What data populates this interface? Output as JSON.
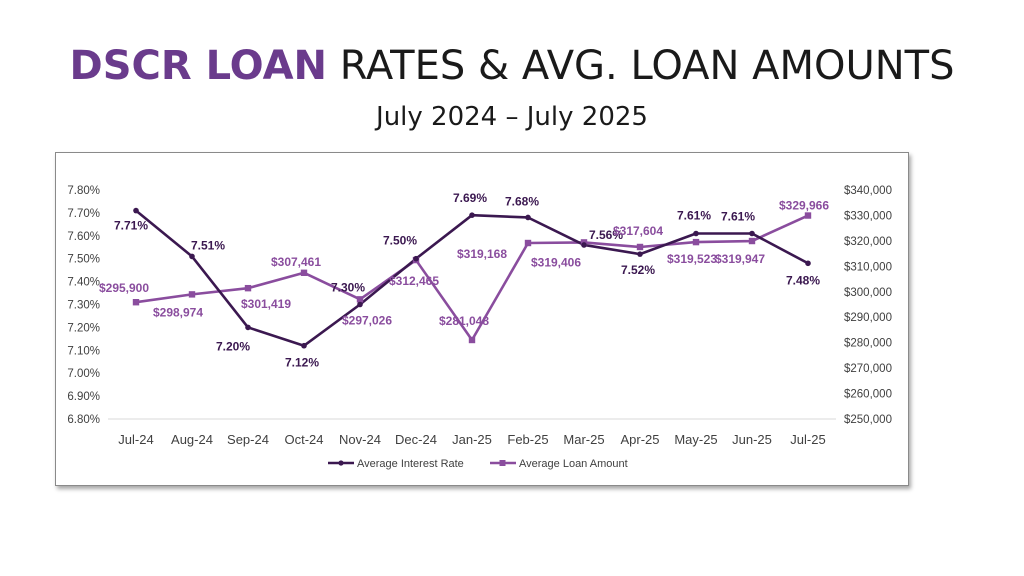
{
  "title": {
    "accent": "DSCR LOAN",
    "rest": "RATES & AVG. LOAN AMOUNTS"
  },
  "subtitle": "July 2024 – July 2025",
  "colors": {
    "accent": "#6a3b8c",
    "rate_line": "#3b1850",
    "amount_line": "#8a4d9e"
  },
  "chart_data": {
    "type": "line",
    "categories": [
      "Jul-24",
      "Aug-24",
      "Sep-24",
      "Oct-24",
      "Nov-24",
      "Dec-24",
      "Jan-25",
      "Feb-25",
      "Mar-25",
      "Apr-25",
      "May-25",
      "Jun-25",
      "Jul-25"
    ],
    "series": [
      {
        "name": "Average Interest Rate",
        "axis": "left",
        "values": [
          7.71,
          7.51,
          7.2,
          7.12,
          7.3,
          7.5,
          7.69,
          7.68,
          7.56,
          7.52,
          7.61,
          7.61,
          7.48
        ],
        "labels": [
          "7.71%",
          "7.51%",
          "7.20%",
          "7.12%",
          "7.30%",
          "7.50%",
          "7.69%",
          "7.68%",
          "7.56%",
          "7.52%",
          "7.61%",
          "7.61%",
          "7.48%"
        ]
      },
      {
        "name": "Average Loan Amount",
        "axis": "right",
        "values": [
          295900,
          298974,
          301419,
          307461,
          297026,
          312465,
          281048,
          319168,
          319406,
          317604,
          319523,
          319947,
          329966
        ],
        "labels": [
          "$295,900",
          "$298,974",
          "$301,419",
          "$307,461",
          "$297,026",
          "$312,465",
          "$281,048",
          "$319,168",
          "$319,406",
          "$317,604",
          "$319,523",
          "$319,947",
          "$329,966"
        ]
      }
    ],
    "y_left": {
      "min": 6.8,
      "max": 7.8,
      "ticks": [
        "7.80%",
        "7.70%",
        "7.60%",
        "7.50%",
        "7.40%",
        "7.30%",
        "7.20%",
        "7.10%",
        "7.00%",
        "6.90%",
        "6.80%"
      ]
    },
    "y_right": {
      "min": 250000,
      "max": 340000,
      "ticks": [
        "$340,000",
        "$330,000",
        "$320,000",
        "$310,000",
        "$300,000",
        "$290,000",
        "$280,000",
        "$270,000",
        "$260,000",
        "$250,000"
      ]
    },
    "legend_position": "bottom",
    "grid": false
  }
}
